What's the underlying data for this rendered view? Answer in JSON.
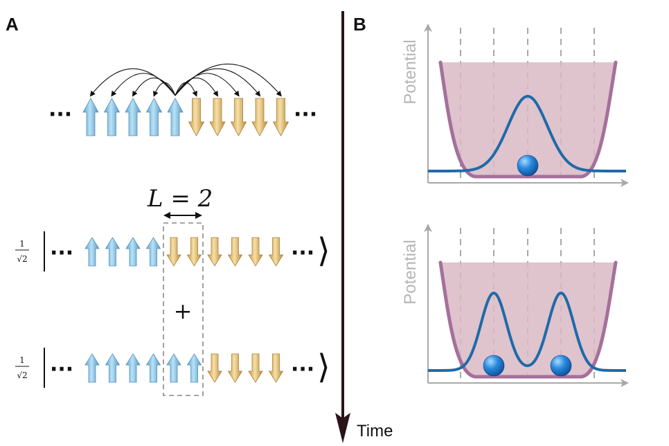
{
  "panels": {
    "a": "A",
    "b": "B"
  },
  "time_label": "Time",
  "ellipsis": "···",
  "length_label": "L = 2",
  "coef": {
    "num": "1",
    "den": "√2"
  },
  "plus": "+",
  "ket_close": "⟩",
  "spin_colors": {
    "up": "#8cc7e8",
    "down": "#e3c27a"
  },
  "spin_rows": {
    "top": [
      "up",
      "up",
      "up",
      "up",
      "up",
      "down",
      "down",
      "down",
      "down",
      "down"
    ],
    "middle": [
      "up",
      "up",
      "up",
      "up",
      "down",
      "down",
      "down",
      "down",
      "down",
      "down"
    ],
    "bottom": [
      "up",
      "up",
      "up",
      "up",
      "up",
      "up",
      "down",
      "down",
      "down",
      "down"
    ]
  },
  "potential_plots": [
    {
      "ylabel": "Potential",
      "peaks": 1,
      "balls": 1
    },
    {
      "ylabel": "Potential",
      "peaks": 2,
      "balls": 2
    }
  ],
  "colors": {
    "well_fill": "#d9b8c4",
    "well_stroke": "#a5709a",
    "wave": "#1e6aa8",
    "ball": "#1f7fd0",
    "axis": "#a8a8a8",
    "grid": "#a8a8a8"
  }
}
